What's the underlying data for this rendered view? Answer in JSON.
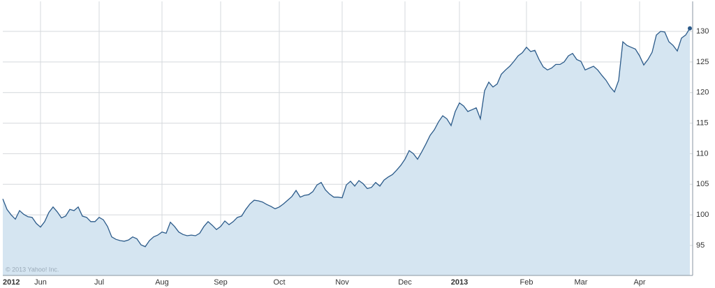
{
  "chart_data": {
    "type": "area",
    "copyright": "© 2013 Yahoo! Inc.",
    "categories": [
      "2012",
      null,
      null,
      null,
      null,
      null,
      null,
      null,
      null,
      "Jun",
      null,
      null,
      null,
      null,
      null,
      null,
      null,
      null,
      null,
      null,
      null,
      null,
      null,
      "Jul",
      null,
      null,
      null,
      null,
      null,
      null,
      null,
      null,
      null,
      null,
      null,
      null,
      null,
      null,
      "Aug",
      null,
      null,
      null,
      null,
      null,
      null,
      null,
      null,
      null,
      null,
      null,
      null,
      null,
      "Sep",
      null,
      null,
      null,
      null,
      null,
      null,
      null,
      null,
      null,
      null,
      null,
      null,
      null,
      "Oct",
      null,
      null,
      null,
      null,
      null,
      null,
      null,
      null,
      null,
      null,
      null,
      null,
      null,
      null,
      "Nov",
      null,
      null,
      null,
      null,
      null,
      null,
      null,
      null,
      null,
      null,
      null,
      null,
      null,
      null,
      "Dec",
      null,
      null,
      null,
      null,
      null,
      null,
      null,
      null,
      null,
      null,
      null,
      null,
      "2013",
      null,
      null,
      null,
      null,
      null,
      null,
      null,
      null,
      null,
      null,
      null,
      null,
      null,
      null,
      null,
      "Feb",
      null,
      null,
      null,
      null,
      null,
      null,
      null,
      null,
      null,
      null,
      null,
      null,
      "Mar",
      null,
      null,
      null,
      null,
      null,
      null,
      null,
      null,
      null,
      null,
      null,
      null,
      null,
      "Apr",
      null,
      null,
      null,
      null,
      null,
      null,
      null,
      null,
      null,
      null,
      null,
      null
    ],
    "values": [
      102.6,
      100.9,
      100,
      99.3,
      100.7,
      100.1,
      99.7,
      99.6,
      98.6,
      98.0,
      98.9,
      100.4,
      101.3,
      100.5,
      99.5,
      99.8,
      100.9,
      100.7,
      101.3,
      99.8,
      99.6,
      98.9,
      98.9,
      99.6,
      99.2,
      98.1,
      96.4,
      96.0,
      95.8,
      95.7,
      95.9,
      96.4,
      96.1,
      95.1,
      94.8,
      95.8,
      96.4,
      96.7,
      97.2,
      97.0,
      98.8,
      98.1,
      97.2,
      96.8,
      96.6,
      96.7,
      96.6,
      97.0,
      98.1,
      98.9,
      98.3,
      97.6,
      98.1,
      99.0,
      98.4,
      98.9,
      99.6,
      99.8,
      100.9,
      101.8,
      102.4,
      102.3,
      102.1,
      101.7,
      101.4,
      101.0,
      101.3,
      101.8,
      102.4,
      103.0,
      104.0,
      102.9,
      103.2,
      103.3,
      103.8,
      104.9,
      105.3,
      104.1,
      103.4,
      102.9,
      102.9,
      102.8,
      104.9,
      105.5,
      104.7,
      105.6,
      105.1,
      104.3,
      104.5,
      105.3,
      104.7,
      105.7,
      106.2,
      106.6,
      107.3,
      108.1,
      109.1,
      110.5,
      110.0,
      109.1,
      110.3,
      111.6,
      113.0,
      113.9,
      115.2,
      116.2,
      115.7,
      114.6,
      116.9,
      118.3,
      117.8,
      116.9,
      117.2,
      117.5,
      115.7,
      120.3,
      121.7,
      120.9,
      121.4,
      123.0,
      123.7,
      124.3,
      125.1,
      126.0,
      126.5,
      127.4,
      126.7,
      126.9,
      125.4,
      124.2,
      123.7,
      124.0,
      124.6,
      124.6,
      125.0,
      126.0,
      126.4,
      125.4,
      125.1,
      123.7,
      124.0,
      124.3,
      123.7,
      122.8,
      122.0,
      120.9,
      120.1,
      122.0,
      128.3,
      127.7,
      127.4,
      127.1,
      126.0,
      124.5,
      125.4,
      126.6,
      129.4,
      130.0,
      129.9,
      128.3,
      127.7,
      126.8,
      128.9,
      129.4,
      130.5
    ],
    "color": "#2c5b8a",
    "fill_color": "#d5e5f1",
    "ylim": [
      90.1,
      134.9
    ],
    "yticks": [
      95,
      100,
      105,
      110,
      115,
      120,
      125,
      130
    ],
    "grid": true
  }
}
